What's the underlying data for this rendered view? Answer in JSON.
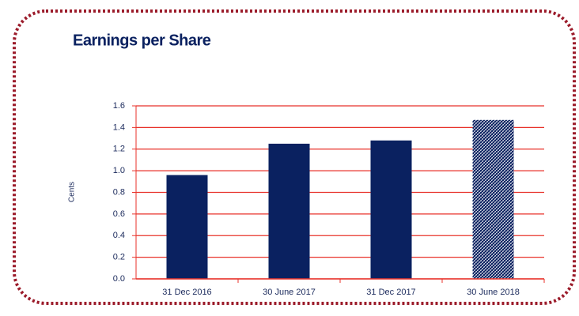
{
  "chart_data": {
    "type": "bar",
    "title": "Earnings per Share",
    "y_label": "Cents",
    "categories": [
      "31 Dec 2016",
      "30 June 2017",
      "31 Dec 2017",
      "30 June 2018"
    ],
    "values": [
      0.96,
      1.25,
      1.28,
      1.47
    ],
    "color": "#0a2160",
    "fill_styles": [
      "solid",
      "solid",
      "solid",
      "hatched"
    ],
    "ylim": [
      0,
      1.6
    ],
    "yticks": [
      {
        "value": 0,
        "label": "0.0"
      },
      {
        "value": 0.2,
        "label": "0.2"
      },
      {
        "value": 0.4,
        "label": "0.4"
      },
      {
        "value": 0.6,
        "label": "0.6"
      },
      {
        "value": 0.8,
        "label": "0.8"
      },
      {
        "value": 1.0,
        "label": "1.0"
      },
      {
        "value": 1.2,
        "label": "1.2"
      },
      {
        "value": 1.4,
        "label": "1.4"
      },
      {
        "value": 1.6,
        "label": "1.6"
      }
    ],
    "grid": true,
    "grid_color": "#e8322a"
  }
}
